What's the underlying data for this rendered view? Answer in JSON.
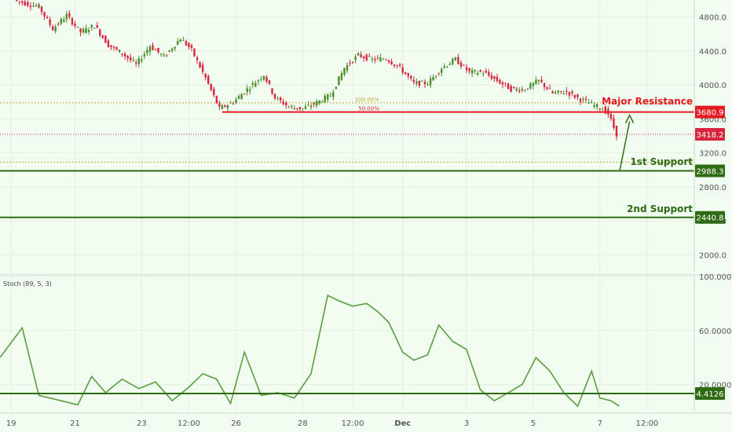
{
  "chart_data": [
    {
      "type": "candlestick",
      "title": "",
      "ylim": [
        1800,
        5000
      ],
      "y_ticks": [
        2000,
        2400,
        2800,
        3200,
        3600,
        4000,
        4400,
        4800
      ],
      "x_tick_labels": [
        "19",
        "21",
        "23",
        "12:00",
        "26",
        "28",
        "12:00",
        "Dec",
        "3",
        "5",
        "7",
        "12:00"
      ],
      "price_path": [
        [
          0.0,
          5050
        ],
        [
          1.5,
          4920
        ],
        [
          2.0,
          4660
        ],
        [
          2.5,
          4820
        ],
        [
          3.0,
          4620
        ],
        [
          3.5,
          4700
        ],
        [
          4.0,
          4470
        ],
        [
          4.5,
          4370
        ],
        [
          5.0,
          4240
        ],
        [
          5.5,
          4460
        ],
        [
          6.0,
          4330
        ],
        [
          6.6,
          4550
        ],
        [
          7.0,
          4410
        ],
        [
          7.5,
          4080
        ],
        [
          8.0,
          3720
        ],
        [
          8.5,
          3800
        ],
        [
          9.0,
          3950
        ],
        [
          9.6,
          4120
        ],
        [
          10.0,
          3850
        ],
        [
          10.5,
          3740
        ],
        [
          11.0,
          3720
        ],
        [
          11.5,
          3790
        ],
        [
          12.0,
          3880
        ],
        [
          12.5,
          4200
        ],
        [
          13.0,
          4350
        ],
        [
          13.5,
          4300
        ],
        [
          14.0,
          4310
        ],
        [
          14.5,
          4200
        ],
        [
          15.0,
          4020
        ],
        [
          15.5,
          4020
        ],
        [
          16.0,
          4200
        ],
        [
          16.5,
          4300
        ],
        [
          17.0,
          4150
        ],
        [
          17.5,
          4150
        ],
        [
          18.0,
          4050
        ],
        [
          18.5,
          3950
        ],
        [
          19.0,
          3950
        ],
        [
          19.5,
          4050
        ],
        [
          20.0,
          3900
        ],
        [
          20.5,
          3920
        ],
        [
          21.0,
          3830
        ],
        [
          21.5,
          3760
        ],
        [
          21.8,
          3720
        ],
        [
          22.0,
          3660
        ],
        [
          22.3,
          3418.2
        ]
      ],
      "current_price": "3418.2",
      "levels": [
        {
          "name": "Major Resistance",
          "value": 3680.9,
          "label": "3680.9",
          "color": "#e31b23"
        },
        {
          "name": "1st Support",
          "value": 2988.3,
          "label": "2988.3",
          "color": "#2f6b14"
        },
        {
          "name": "2nd Support",
          "value": 2440.8,
          "label": "2440.8",
          "color": "#2f6b14"
        }
      ],
      "fib_lines": [
        {
          "label": "100.00%",
          "value": 3790
        },
        {
          "label": "50.00%",
          "value": 3090
        }
      ]
    },
    {
      "type": "line",
      "title": "Stoch (89, 5, 3)",
      "ylim": [
        0,
        100
      ],
      "y_ticks": [
        20,
        60,
        100
      ],
      "y_tick_labels": [
        "20.0000",
        "60.0000",
        "100.0000"
      ],
      "x": [
        0,
        0.8,
        1.4,
        2.2,
        2.8,
        3.3,
        3.8,
        4.4,
        5.0,
        5.6,
        6.2,
        6.8,
        7.3,
        7.8,
        8.3,
        8.8,
        9.4,
        10.0,
        10.6,
        11.2,
        11.8,
        12.2,
        12.7,
        13.2,
        13.6,
        14.0,
        14.5,
        14.9,
        15.4,
        15.8,
        16.3,
        16.8,
        17.3,
        17.8,
        18.3,
        18.8,
        19.3,
        19.8,
        20.3,
        20.8,
        21.3,
        21.6,
        22.0,
        22.3
      ],
      "y": [
        40,
        62,
        12,
        8,
        5,
        26,
        14,
        24,
        17,
        22,
        8,
        18,
        28,
        24,
        6,
        44,
        12,
        14,
        10,
        28,
        86,
        82,
        78,
        80,
        74,
        66,
        44,
        38,
        42,
        64,
        52,
        46,
        16,
        8,
        14,
        20,
        40,
        30,
        14,
        4,
        30,
        10,
        8,
        4
      ],
      "value_label": "4.4126",
      "series": [
        {
          "name": "",
          "color": "#5a9e3c"
        }
      ]
    }
  ],
  "annotations": {
    "major_resistance": "Major Resistance",
    "first_support": "1st Support",
    "second_support": "2nd Support"
  },
  "colors": {
    "background": "#f1fdf1",
    "up_candle": "#4a8d2a",
    "down_candle": "#d7263d",
    "resistance": "#e31b23",
    "support": "#2f6b14",
    "stoch": "#5a9e3c",
    "fib": "#c7a93a"
  }
}
